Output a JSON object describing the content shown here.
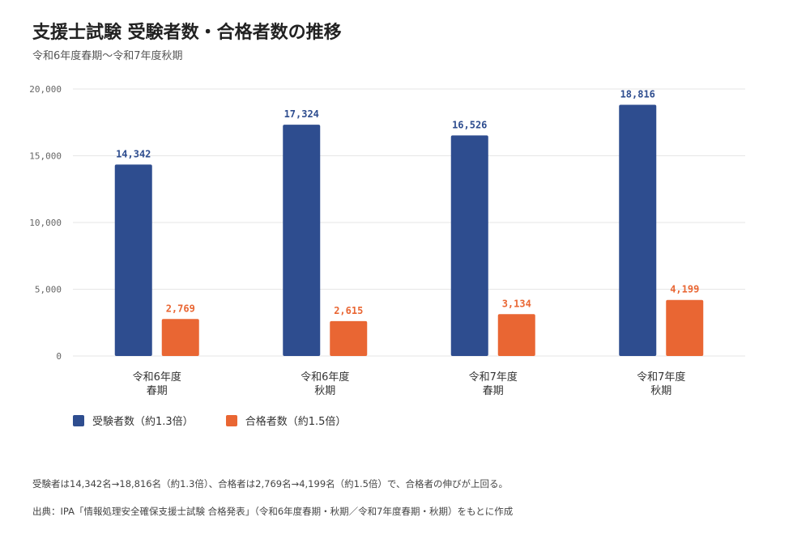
{
  "header": {
    "title": "支援士試験 受験者数・合格者数の推移",
    "subtitle": "令和6年度春期〜令和7年度秋期"
  },
  "colors": {
    "applicants": "#2e4d8f",
    "passers": "#e96633",
    "applicants_label": "#2e4d8f",
    "passers_label": "#e96633",
    "grid": "#e6e6e6",
    "tick": "#666666"
  },
  "chart_data": {
    "type": "bar",
    "categories": [
      [
        "令和6年度",
        "春期"
      ],
      [
        "令和6年度",
        "秋期"
      ],
      [
        "令和7年度",
        "春期"
      ],
      [
        "令和7年度",
        "秋期"
      ]
    ],
    "series": [
      {
        "name": "受験者数（約1.3倍）",
        "values": [
          14342,
          17324,
          16526,
          18816
        ],
        "labels": [
          "14,342",
          "17,324",
          "16,526",
          "18,816"
        ]
      },
      {
        "name": "合格者数（約1.5倍）",
        "values": [
          2769,
          2615,
          3134,
          4199
        ],
        "labels": [
          "2,769",
          "2,615",
          "3,134",
          "4,199"
        ]
      }
    ],
    "ylim": [
      0,
      20000
    ],
    "yticks": [
      0,
      5000,
      10000,
      15000,
      20000
    ],
    "ytick_labels": [
      "0",
      "5,000",
      "10,000",
      "15,000",
      "20,000"
    ],
    "grid": true,
    "legend": "bottom-left"
  },
  "footer": {
    "note": "受験者は14,342名→18,816名（約1.3倍）、合格者は2,769名→4,199名（約1.5倍）で、合格者の伸びが上回る。",
    "source": "出典：IPA「情報処理安全確保支援士試験 合格発表」（令和6年度春期・秋期／令和7年度春期・秋期）をもとに作成"
  }
}
